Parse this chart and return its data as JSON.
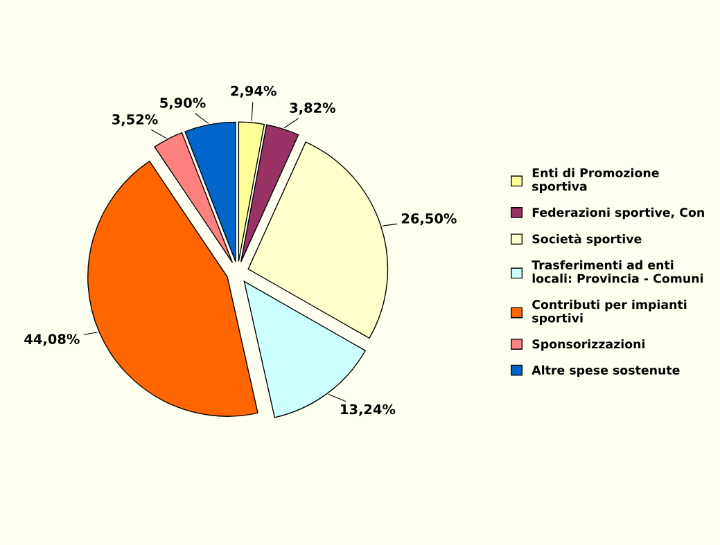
{
  "chart_data": {
    "type": "pie",
    "categories": [
      "Enti di Promozione\nsportiva",
      "Federazioni sportive, Con",
      "Società sportive",
      "Trasferimenti ad enti\nlocali: Provincia - Comuni",
      "Contributi per impianti\nsportivi",
      "Sponsorizzazioni",
      "Altre spese sostenute"
    ],
    "values": [
      2.94,
      3.82,
      26.5,
      13.24,
      44.08,
      3.52,
      5.9
    ],
    "colors": [
      "#ffff99",
      "#993366",
      "#ffffcc",
      "#ccffff",
      "#ff6600",
      "#ff8080",
      "#0066cc"
    ],
    "value_labels": [
      "2,94%",
      "3,82%",
      "26,50%",
      "13,24%",
      "44,08%",
      "3,52%",
      "5,90%"
    ],
    "legend": "right"
  }
}
